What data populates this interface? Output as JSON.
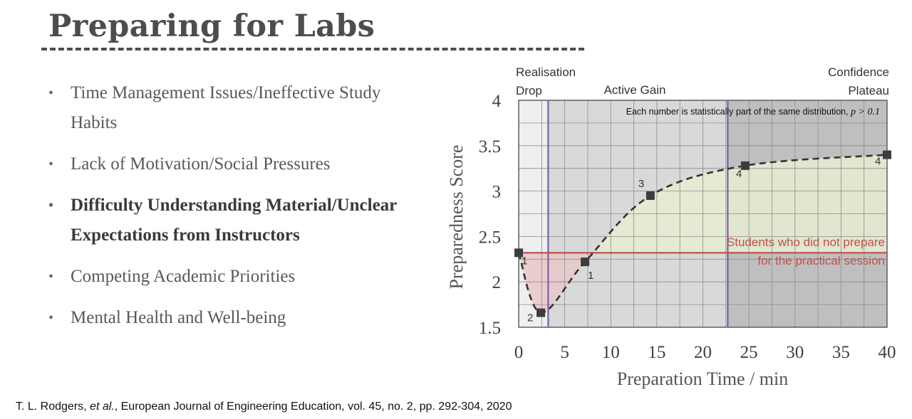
{
  "slide": {
    "title": "Preparing for Labs",
    "bullets": [
      {
        "text": "Time Management Issues/Ineffective Study Habits",
        "bold": false
      },
      {
        "text": "Lack of Motivation/Social Pressures",
        "bold": false
      },
      {
        "text": "Difficulty Understanding Material/Unclear Expectations from Instructors",
        "bold": true
      },
      {
        "text": "Competing Academic Priorities",
        "bold": false
      },
      {
        "text": "Mental Health and Well-being",
        "bold": false
      }
    ],
    "citation": {
      "authors": "T. L. Rodgers, ",
      "etal": "et al.",
      "rest": ", European Journal of Engineering Education, vol. 45, no. 2, pp. 292-304, 2020"
    }
  },
  "chart_data": {
    "type": "line",
    "xlabel": "Preparation Time / min",
    "ylabel": "Preparedness Score",
    "xlim": [
      0,
      40
    ],
    "ylim": [
      1.5,
      4
    ],
    "xticks": [
      0,
      5,
      10,
      15,
      20,
      25,
      30,
      35,
      40
    ],
    "yticks": [
      1.5,
      2,
      2.5,
      3,
      3.5,
      4
    ],
    "ytick_labels": [
      "1.5",
      "2",
      "2.5",
      "3",
      "3.5",
      "4"
    ],
    "grid": true,
    "regions": [
      {
        "label": "Realisation Drop",
        "label_lines": [
          "Realisation",
          "Drop"
        ],
        "x0": 0,
        "x1": 3.2,
        "color": "#efefef"
      },
      {
        "label": "Active Gain",
        "label_lines": [
          "Active Gain"
        ],
        "x0": 3.2,
        "x1": 22.7,
        "color": "#d9d9d9"
      },
      {
        "label": "Confidence Plateau",
        "label_lines": [
          "Confidence",
          "Plateau"
        ],
        "x0": 22.7,
        "x1": 40,
        "color": "#bfbfbf"
      }
    ],
    "region_divider_color": "#7e5ea8",
    "reference_line": {
      "y": 2.32,
      "label_lines": [
        "Students who did not prepare",
        "for the practical session"
      ],
      "color": "#c0504d"
    },
    "series": [
      {
        "points": [
          {
            "x": 0,
            "y": 2.32,
            "label": "1"
          },
          {
            "x": 2.4,
            "y": 1.66,
            "label": "2"
          },
          {
            "x": 7.2,
            "y": 2.22,
            "label": "1"
          },
          {
            "x": 14.3,
            "y": 2.95,
            "label": "3"
          },
          {
            "x": 24.6,
            "y": 3.28,
            "label": "4"
          },
          {
            "x": 40,
            "y": 3.4,
            "label": "4"
          }
        ],
        "color": "#333333",
        "style": "dashed"
      }
    ],
    "annotation": {
      "prefix": "Each number is statistically part of the same distribution, ",
      "math": "p > 0.1"
    },
    "fill_below_color": "#e8c8c8",
    "fill_above_color": "#e6edd0"
  }
}
